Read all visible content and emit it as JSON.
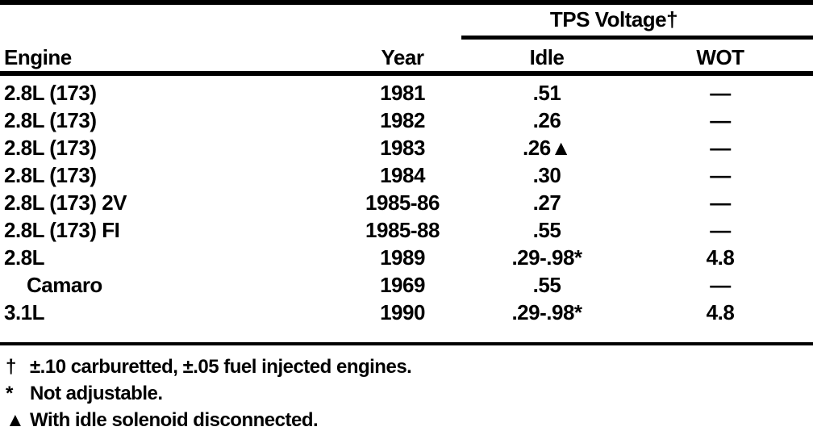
{
  "table": {
    "group_header": "TPS Voltage†",
    "columns": {
      "engine": "Engine",
      "year": "Year",
      "idle": "Idle",
      "wot": "WOT"
    },
    "rows": [
      {
        "engine": "2.8L (173)",
        "indent": false,
        "year": "1981",
        "idle": ".51",
        "wot": "—"
      },
      {
        "engine": "2.8L (173)",
        "indent": false,
        "year": "1982",
        "idle": ".26",
        "wot": "—"
      },
      {
        "engine": "2.8L (173)",
        "indent": false,
        "year": "1983",
        "idle": ".26▲",
        "wot": "—"
      },
      {
        "engine": "2.8L (173)",
        "indent": false,
        "year": "1984",
        "idle": ".30",
        "wot": "—"
      },
      {
        "engine": "2.8L (173) 2V",
        "indent": false,
        "year": "1985-86",
        "idle": ".27",
        "wot": "—"
      },
      {
        "engine": "2.8L (173) FI",
        "indent": false,
        "year": "1985-88",
        "idle": ".55",
        "wot": "—"
      },
      {
        "engine": "2.8L",
        "indent": false,
        "year": "1989",
        "idle": ".29-.98*",
        "wot": "4.8"
      },
      {
        "engine": "Camaro",
        "indent": true,
        "year": "1969",
        "idle": ".55",
        "wot": "—"
      },
      {
        "engine": "3.1L",
        "indent": false,
        "year": "1990",
        "idle": ".29-.98*",
        "wot": "4.8"
      }
    ],
    "footnotes": [
      {
        "symbol": "†",
        "text": "±.10 carburetted, ±.05 fuel injected engines."
      },
      {
        "symbol": "*",
        "text": "Not adjustable."
      },
      {
        "symbol": "▲",
        "text": "With idle solenoid disconnected."
      }
    ]
  }
}
